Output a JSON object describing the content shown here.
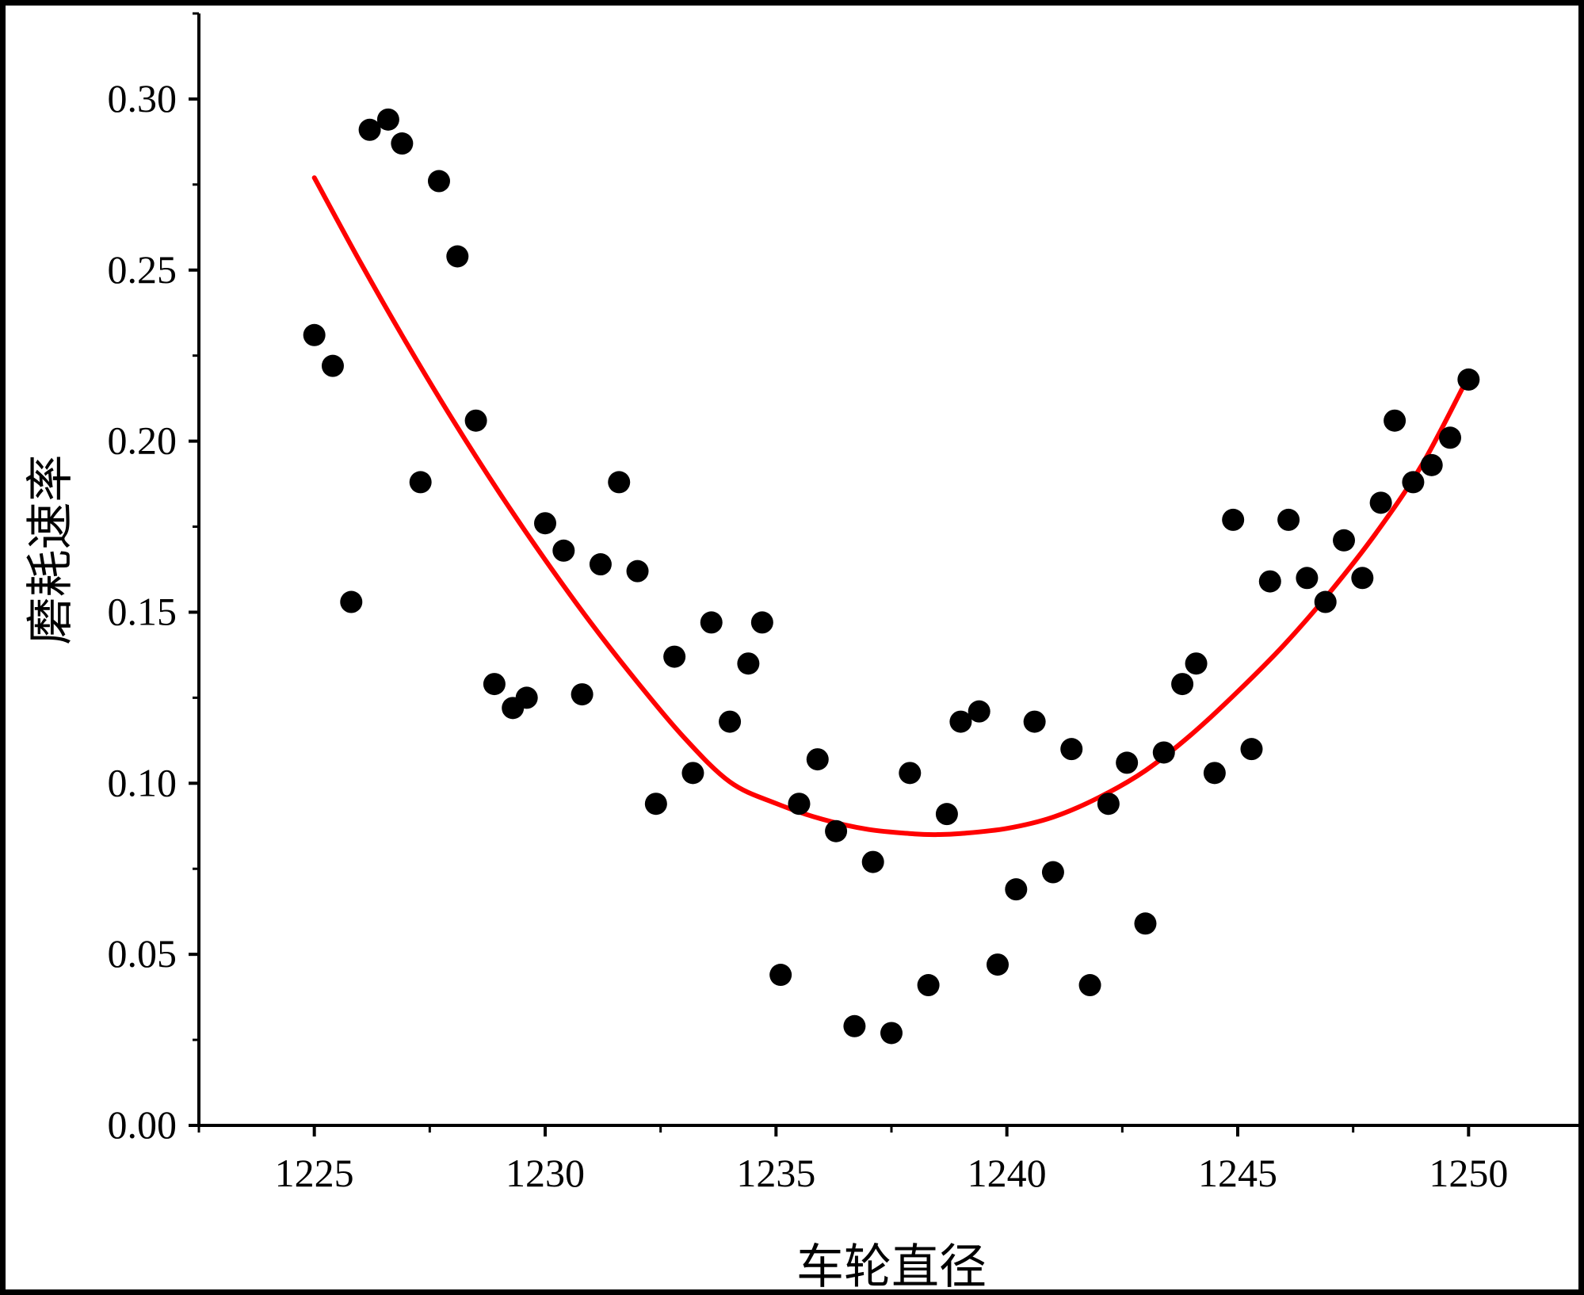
{
  "chart_data": {
    "type": "scatter",
    "title": "",
    "xlabel": "车轮直径",
    "ylabel": "磨耗速率",
    "xlim": [
      1222.5,
      1252.5
    ],
    "ylim": [
      0.0,
      0.325
    ],
    "x_ticks": [
      1225,
      1230,
      1235,
      1240,
      1245,
      1250
    ],
    "x_tick_labels": [
      "1225",
      "1230",
      "1235",
      "1240",
      "1245",
      "1250"
    ],
    "y_ticks": [
      0.0,
      0.05,
      0.1,
      0.15,
      0.2,
      0.25,
      0.3
    ],
    "y_tick_labels": [
      "0.00",
      "0.05",
      "0.10",
      "0.15",
      "0.20",
      "0.25",
      "0.30"
    ],
    "grid": false,
    "legend": "none",
    "colors": {
      "points": "#000000",
      "fit_line": "#ff0000",
      "axes": "#000000"
    },
    "series": [
      {
        "kind": "points",
        "x": [
          1225.0,
          1225.4,
          1225.8,
          1226.2,
          1226.6,
          1226.9,
          1227.3,
          1227.7,
          1228.1,
          1228.5,
          1228.9,
          1229.3,
          1229.6,
          1230.0,
          1230.4,
          1230.8,
          1231.2,
          1231.6,
          1232.0,
          1232.4,
          1232.8,
          1233.2,
          1233.6,
          1234.0,
          1234.4,
          1234.7,
          1235.1,
          1235.5,
          1235.9,
          1236.3,
          1236.7,
          1237.1,
          1237.5,
          1237.9,
          1238.3,
          1238.7,
          1239.0,
          1239.4,
          1239.8,
          1240.2,
          1240.6,
          1241.0,
          1241.4,
          1241.8,
          1242.2,
          1242.6,
          1243.0,
          1243.4,
          1243.8,
          1244.1,
          1244.5,
          1244.9,
          1245.3,
          1245.7,
          1246.1,
          1246.5,
          1246.9,
          1247.3,
          1247.7,
          1248.1,
          1248.4,
          1248.8,
          1249.2,
          1249.6,
          1250.0
        ],
        "y": [
          0.231,
          0.222,
          0.153,
          0.291,
          0.294,
          0.287,
          0.188,
          0.276,
          0.254,
          0.206,
          0.129,
          0.122,
          0.125,
          0.176,
          0.168,
          0.126,
          0.164,
          0.188,
          0.162,
          0.094,
          0.137,
          0.103,
          0.147,
          0.118,
          0.135,
          0.147,
          0.044,
          0.094,
          0.107,
          0.086,
          0.029,
          0.077,
          0.027,
          0.103,
          0.041,
          0.091,
          0.118,
          0.121,
          0.047,
          0.069,
          0.118,
          0.074,
          0.11,
          0.041,
          0.094,
          0.106,
          0.059,
          0.109,
          0.129,
          0.135,
          0.103,
          0.177,
          0.11,
          0.159,
          0.177,
          0.16,
          0.153,
          0.171,
          0.16,
          0.182,
          0.206,
          0.188,
          0.193,
          0.201,
          0.218
        ]
      },
      {
        "kind": "fit_curve",
        "x": [
          1225.0,
          1226.0,
          1227.0,
          1228.0,
          1229.0,
          1230.0,
          1231.0,
          1232.0,
          1233.0,
          1234.0,
          1235.0,
          1236.0,
          1237.0,
          1238.0,
          1238.5,
          1239.0,
          1240.0,
          1241.0,
          1242.0,
          1243.0,
          1244.0,
          1245.0,
          1246.0,
          1247.0,
          1248.0,
          1249.0,
          1250.0
        ],
        "y": [
          0.277,
          0.2522,
          0.2286,
          0.2062,
          0.1851,
          0.1653,
          0.1467,
          0.1295,
          0.1135,
          0.1004,
          0.0941,
          0.0895,
          0.0865,
          0.0852,
          0.085,
          0.0853,
          0.0868,
          0.0901,
          0.0959,
          0.1037,
          0.1143,
          0.1268,
          0.1404,
          0.1559,
          0.1732,
          0.1933,
          0.219
        ]
      }
    ]
  }
}
